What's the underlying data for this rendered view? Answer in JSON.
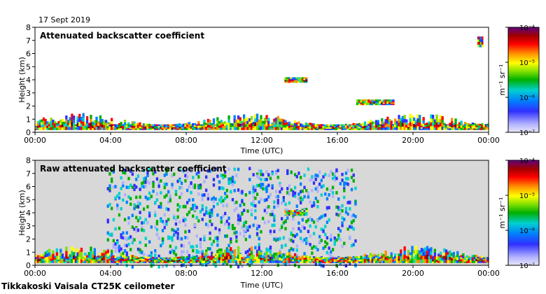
{
  "header": {
    "date": "17 Sept 2019"
  },
  "footer": {
    "instrument": "Tikkakoski Vaisala CT25K ceilometer"
  },
  "colors": {
    "background_noise": "#d8d8d8",
    "colormap": [
      "#e8e8f8",
      "#b0b0ff",
      "#3030ff",
      "#0080ff",
      "#00d0d0",
      "#00b000",
      "#80e000",
      "#ffff00",
      "#ff9000",
      "#ff0000",
      "#c00000",
      "#800000",
      "#600080"
    ]
  },
  "chart_data": [
    {
      "type": "heatmap",
      "title": "Attenuated backscatter coefficient",
      "xlabel": "Time (UTC)",
      "ylabel": "Height (km)",
      "xticks": [
        "00:00",
        "04:00",
        "08:00",
        "12:00",
        "16:00",
        "20:00",
        "00:00"
      ],
      "yticks": [
        "0",
        "1",
        "2",
        "3",
        "4",
        "5",
        "6",
        "7",
        "8"
      ],
      "xlim_hours": [
        0,
        24
      ],
      "ylim_km": [
        0,
        8
      ],
      "colorbar": {
        "scale": "log",
        "unit": "m⁻¹ sr⁻¹",
        "tick_labels": [
          "10⁻⁴",
          "10⁻⁵",
          "10⁻⁶",
          "10⁻⁷"
        ],
        "range": [
          1e-07,
          0.0001
        ]
      },
      "features": [
        {
          "desc": "boundary layer",
          "t_start": 0,
          "t_end": 24,
          "height_km": [
            0.2,
            1.6
          ]
        },
        {
          "desc": "cloud layer",
          "t_start": 13.2,
          "t_end": 14.4,
          "height_km": [
            3.8,
            4.2
          ]
        },
        {
          "desc": "cloud layer",
          "t_start": 17.0,
          "t_end": 19.0,
          "height_km": [
            2.1,
            2.5
          ]
        },
        {
          "desc": "high cloud",
          "t_start": 23.4,
          "t_end": 23.7,
          "height_km": [
            6.5,
            7.3
          ]
        }
      ]
    },
    {
      "type": "heatmap",
      "title": "Raw attenuated backscatter coefficient",
      "xlabel": "Time (UTC)",
      "ylabel": "Height (km)",
      "xticks": [
        "00:00",
        "04:00",
        "08:00",
        "12:00",
        "16:00",
        "20:00",
        "00:00"
      ],
      "yticks": [
        "0",
        "1",
        "2",
        "3",
        "4",
        "5",
        "6",
        "7",
        "8"
      ],
      "xlim_hours": [
        0,
        24
      ],
      "ylim_km": [
        0,
        8
      ],
      "colorbar": {
        "scale": "log",
        "unit": "m⁻¹ sr⁻¹",
        "tick_labels": [
          "10⁻⁴",
          "10⁻⁵",
          "10⁻⁶",
          "10⁻⁷"
        ],
        "range": [
          1e-07,
          0.0001
        ]
      },
      "features": [
        {
          "desc": "daytime noise",
          "t_start": 3.8,
          "t_end": 17.0,
          "height_km": [
            0,
            7.5
          ]
        },
        {
          "desc": "boundary layer",
          "t_start": 0,
          "t_end": 24,
          "height_km": [
            0.2,
            1.6
          ]
        },
        {
          "desc": "cloud layer",
          "t_start": 13.2,
          "t_end": 14.4,
          "height_km": [
            3.8,
            4.2
          ]
        }
      ]
    }
  ]
}
